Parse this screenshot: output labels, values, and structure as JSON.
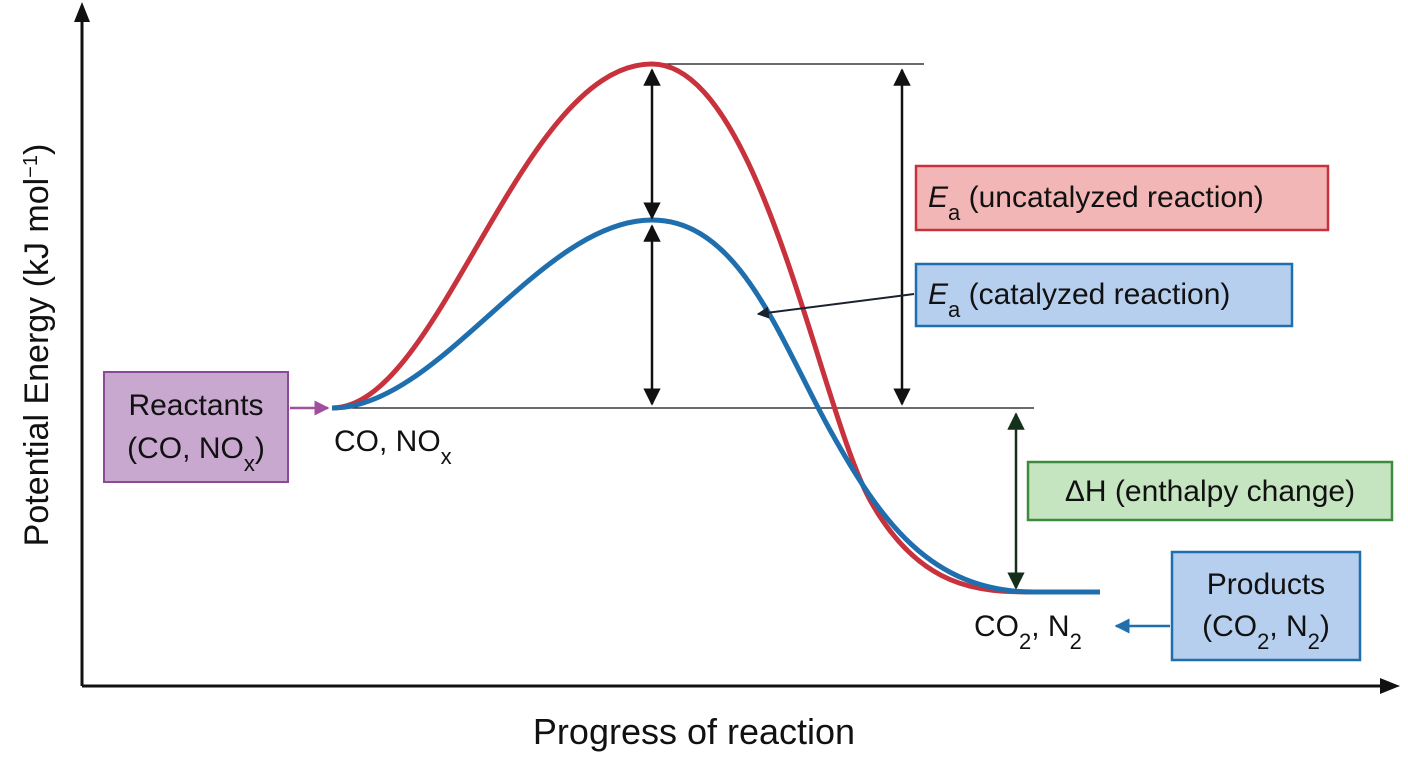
{
  "axes": {
    "y_label": {
      "main": "Potential Energy (kJ mol",
      "sup": "−1",
      "end": ")"
    },
    "x_label": "Progress of reaction"
  },
  "reactants_box": {
    "line1": "Reactants",
    "line2": {
      "pre": "(CO, NO",
      "sub": "x",
      "post": ")"
    }
  },
  "reactants_point_label": {
    "pre": "CO, NO",
    "sub": "x"
  },
  "products_box": {
    "line1": "Products",
    "line2": {
      "pre": "(CO",
      "sub1": "2",
      "mid": ", N",
      "sub2": "2",
      "post": ")"
    }
  },
  "products_point_label": {
    "pre": "CO",
    "sub1": "2",
    "mid": ", N",
    "sub2": "2"
  },
  "ea_uncatalyzed": {
    "symbol": "E",
    "sub": "a",
    "text": " (uncatalyzed reaction)"
  },
  "ea_catalyzed": {
    "symbol": "E",
    "sub": "a",
    "text": " (catalyzed reaction)"
  },
  "delta_h": {
    "text": "ΔH (enthalpy change)"
  },
  "colors": {
    "uncatalyzed_curve": "#c8323c",
    "catalyzed_curve": "#1f6fae",
    "reactants_box_fill": "#c9a8d0",
    "reactants_box_stroke": "#8a4a96",
    "reactants_arrow": "#a04f9c",
    "uncatalyzed_box_fill": "#f2b6b6",
    "uncatalyzed_box_stroke": "#c8323c",
    "catalyzed_box_fill": "#b6cfee",
    "catalyzed_box_stroke": "#1f6fae",
    "delta_box_fill": "#c5e4c0",
    "delta_box_stroke": "#3e8a3e",
    "products_box_fill": "#b6cfee",
    "products_box_stroke": "#1f6fae",
    "products_arrow": "#1f6fae",
    "delta_arrow": "#14301a"
  }
}
